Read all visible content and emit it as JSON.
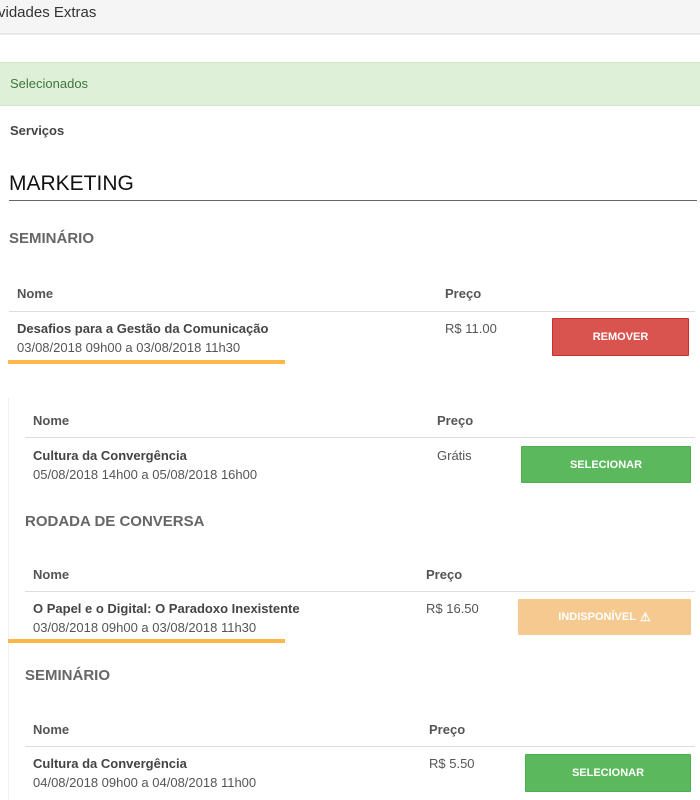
{
  "header": {
    "title": "vidades Extras"
  },
  "alert": {
    "text": "Selecionados"
  },
  "services_label": "Serviços",
  "category": "MARKETING",
  "colors": {
    "remove": "#d9534f",
    "select": "#5cb85c",
    "unavailable": "#f5c98f",
    "highlight": "#ffb848",
    "alert_bg": "#dff0d8"
  },
  "sections": [
    {
      "type": "SEMINÁRIO",
      "col_name": "Nome",
      "col_price": "Preço",
      "item": {
        "title": "Desafios para a Gestão da Comunicação",
        "date": "03/08/2018 09h00 a 03/08/2018 11h30",
        "price": "R$ 11.00",
        "action": "REMOVER"
      }
    },
    {
      "col_name": "Nome",
      "col_price": "Preço",
      "item": {
        "title": "Cultura da Convergência",
        "date": "05/08/2018 14h00 a 05/08/2018 16h00",
        "price": "Grátis",
        "action": "SELECIONAR"
      }
    },
    {
      "type": "RODADA DE CONVERSA",
      "col_name": "Nome",
      "col_price": "Preço",
      "item": {
        "title": "O Papel e o Digital: O Paradoxo Inexistente",
        "date": "03/08/2018 09h00 a 03/08/2018 11h30",
        "price": "R$ 16.50",
        "action": "INDISPONÍVEL",
        "action_icon": "warning-icon"
      }
    },
    {
      "type": "SEMINÁRIO",
      "col_name": "Nome",
      "col_price": "Preço",
      "item": {
        "title": "Cultura da Convergência",
        "date": "04/08/2018 09h00 a 04/08/2018 11h00",
        "price": "R$ 5.50",
        "action": "SELECIONAR"
      }
    }
  ]
}
